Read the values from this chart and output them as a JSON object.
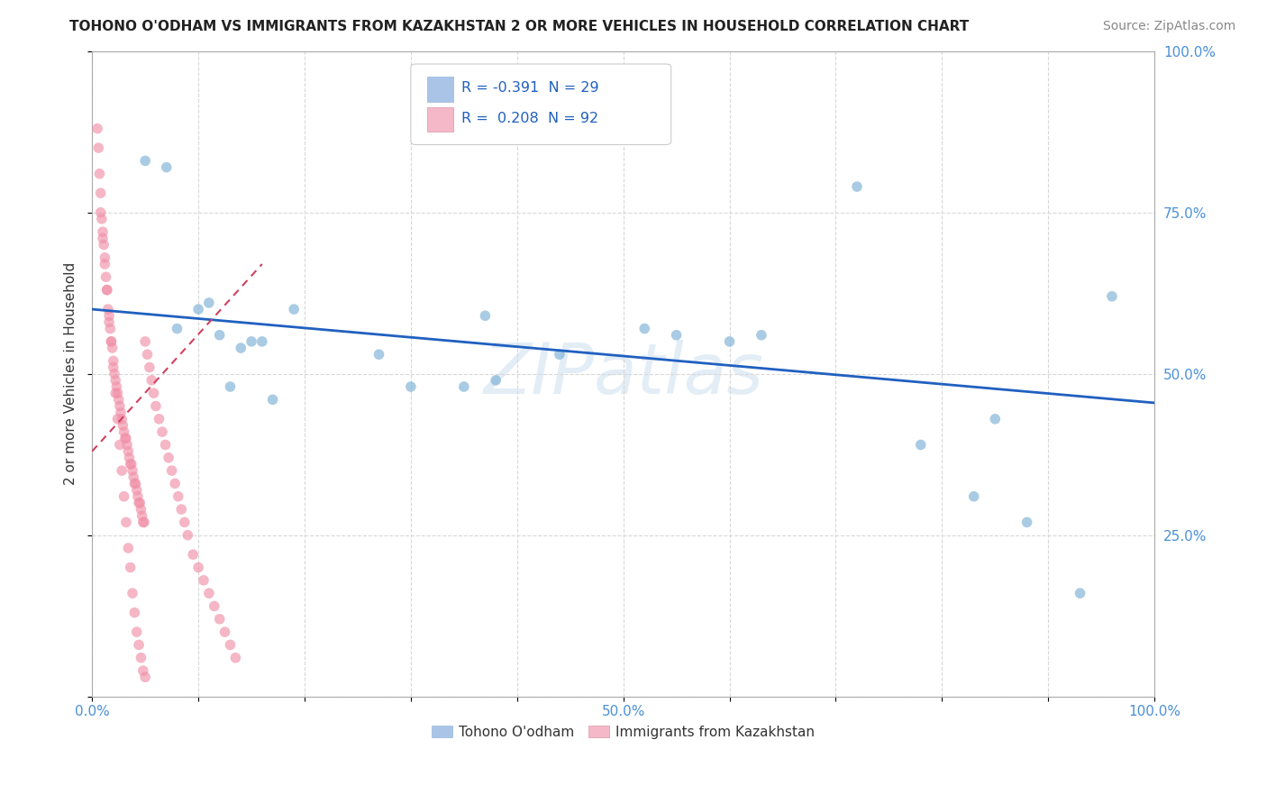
{
  "title": "TOHONO O'ODHAM VS IMMIGRANTS FROM KAZAKHSTAN 2 OR MORE VEHICLES IN HOUSEHOLD CORRELATION CHART",
  "source": "Source: ZipAtlas.com",
  "ylabel": "2 or more Vehicles in Household",
  "xlim": [
    0.0,
    1.0
  ],
  "ylim": [
    0.0,
    1.0
  ],
  "background_color": "#ffffff",
  "grid_color": "#d8d8d8",
  "legend_R1": "-0.391",
  "legend_N1": "29",
  "legend_R2": "0.208",
  "legend_N2": "92",
  "legend_color1": "#aac4e8",
  "legend_color2": "#f4b8c8",
  "blue_color": "#7bafd4",
  "pink_color": "#f090a8",
  "blue_line_color": "#2060c0",
  "pink_line_color": "#d04060",
  "scatter_alpha": 0.65,
  "scatter_size": 70,
  "blue_line_x": [
    0.0,
    1.0
  ],
  "blue_line_y": [
    0.6,
    0.455
  ],
  "pink_line_x": [
    0.0,
    0.16
  ],
  "pink_line_y": [
    0.38,
    0.67
  ],
  "blue_scatter_x": [
    0.05,
    0.08,
    0.1,
    0.12,
    0.13,
    0.14,
    0.16,
    0.17,
    0.19,
    0.27,
    0.3,
    0.37,
    0.38,
    0.44,
    0.52,
    0.55,
    0.6,
    0.72,
    0.78,
    0.83,
    0.85,
    0.88,
    0.93,
    0.96,
    0.07,
    0.11,
    0.15,
    0.35,
    0.63
  ],
  "blue_scatter_y": [
    0.83,
    0.57,
    0.6,
    0.56,
    0.48,
    0.54,
    0.55,
    0.46,
    0.6,
    0.53,
    0.48,
    0.59,
    0.49,
    0.53,
    0.57,
    0.56,
    0.55,
    0.79,
    0.39,
    0.31,
    0.43,
    0.27,
    0.16,
    0.62,
    0.82,
    0.61,
    0.55,
    0.48,
    0.56
  ],
  "pink_scatter_x": [
    0.005,
    0.006,
    0.007,
    0.008,
    0.009,
    0.01,
    0.011,
    0.012,
    0.013,
    0.014,
    0.015,
    0.016,
    0.017,
    0.018,
    0.019,
    0.02,
    0.021,
    0.022,
    0.023,
    0.024,
    0.025,
    0.026,
    0.027,
    0.028,
    0.029,
    0.03,
    0.031,
    0.032,
    0.033,
    0.034,
    0.035,
    0.036,
    0.037,
    0.038,
    0.039,
    0.04,
    0.041,
    0.042,
    0.043,
    0.044,
    0.045,
    0.046,
    0.047,
    0.048,
    0.049,
    0.05,
    0.052,
    0.054,
    0.056,
    0.058,
    0.06,
    0.063,
    0.066,
    0.069,
    0.072,
    0.075,
    0.078,
    0.081,
    0.084,
    0.087,
    0.09,
    0.095,
    0.1,
    0.105,
    0.11,
    0.115,
    0.12,
    0.125,
    0.13,
    0.135,
    0.008,
    0.01,
    0.012,
    0.014,
    0.016,
    0.018,
    0.02,
    0.022,
    0.024,
    0.026,
    0.028,
    0.03,
    0.032,
    0.034,
    0.036,
    0.038,
    0.04,
    0.042,
    0.044,
    0.046,
    0.048,
    0.05
  ],
  "pink_scatter_y": [
    0.88,
    0.85,
    0.81,
    0.78,
    0.74,
    0.72,
    0.7,
    0.68,
    0.65,
    0.63,
    0.6,
    0.58,
    0.57,
    0.55,
    0.54,
    0.52,
    0.5,
    0.49,
    0.48,
    0.47,
    0.46,
    0.45,
    0.44,
    0.43,
    0.42,
    0.41,
    0.4,
    0.4,
    0.39,
    0.38,
    0.37,
    0.36,
    0.36,
    0.35,
    0.34,
    0.33,
    0.33,
    0.32,
    0.31,
    0.3,
    0.3,
    0.29,
    0.28,
    0.27,
    0.27,
    0.55,
    0.53,
    0.51,
    0.49,
    0.47,
    0.45,
    0.43,
    0.41,
    0.39,
    0.37,
    0.35,
    0.33,
    0.31,
    0.29,
    0.27,
    0.25,
    0.22,
    0.2,
    0.18,
    0.16,
    0.14,
    0.12,
    0.1,
    0.08,
    0.06,
    0.75,
    0.71,
    0.67,
    0.63,
    0.59,
    0.55,
    0.51,
    0.47,
    0.43,
    0.39,
    0.35,
    0.31,
    0.27,
    0.23,
    0.2,
    0.16,
    0.13,
    0.1,
    0.08,
    0.06,
    0.04,
    0.03
  ]
}
